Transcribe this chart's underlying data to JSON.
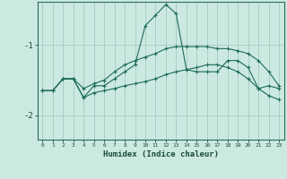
{
  "xlabel": "Humidex (Indice chaleur)",
  "background_color": "#cce9e1",
  "line_color": "#1e6b5a",
  "grid_color": "#a8cfc5",
  "xlim": [
    -0.5,
    23.5
  ],
  "ylim": [
    -2.35,
    -0.38
  ],
  "yticks": [
    -2,
    -1
  ],
  "xticks": [
    0,
    1,
    2,
    3,
    4,
    5,
    6,
    7,
    8,
    9,
    10,
    11,
    12,
    13,
    14,
    15,
    16,
    17,
    18,
    19,
    20,
    21,
    22,
    23
  ],
  "series1_x": [
    0,
    1,
    2,
    3,
    4,
    5,
    6,
    7,
    8,
    9,
    10,
    11,
    12,
    13,
    14,
    15,
    16,
    17,
    18,
    19,
    20,
    21,
    22,
    23
  ],
  "series1_y": [
    -1.65,
    -1.65,
    -1.48,
    -1.48,
    -1.75,
    -1.58,
    -1.58,
    -1.48,
    -1.38,
    -1.28,
    -0.72,
    -0.57,
    -0.42,
    -0.55,
    -1.35,
    -1.38,
    -1.38,
    -1.38,
    -1.22,
    -1.22,
    -1.32,
    -1.62,
    -1.58,
    -1.62
  ],
  "series2_x": [
    0,
    1,
    2,
    3,
    4,
    5,
    6,
    7,
    8,
    9,
    10,
    11,
    12,
    13,
    14,
    15,
    16,
    17,
    18,
    19,
    20,
    21,
    22,
    23
  ],
  "series2_y": [
    -1.65,
    -1.65,
    -1.48,
    -1.48,
    -1.62,
    -1.55,
    -1.5,
    -1.38,
    -1.28,
    -1.22,
    -1.17,
    -1.12,
    -1.05,
    -1.02,
    -1.02,
    -1.02,
    -1.02,
    -1.05,
    -1.05,
    -1.08,
    -1.12,
    -1.22,
    -1.38,
    -1.58
  ],
  "series3_x": [
    0,
    1,
    2,
    3,
    4,
    5,
    6,
    7,
    8,
    9,
    10,
    11,
    12,
    13,
    14,
    15,
    16,
    17,
    18,
    19,
    20,
    21,
    22,
    23
  ],
  "series3_y": [
    -1.65,
    -1.65,
    -1.48,
    -1.48,
    -1.75,
    -1.68,
    -1.65,
    -1.62,
    -1.58,
    -1.55,
    -1.52,
    -1.48,
    -1.42,
    -1.38,
    -1.35,
    -1.32,
    -1.28,
    -1.28,
    -1.32,
    -1.38,
    -1.48,
    -1.62,
    -1.72,
    -1.78
  ]
}
